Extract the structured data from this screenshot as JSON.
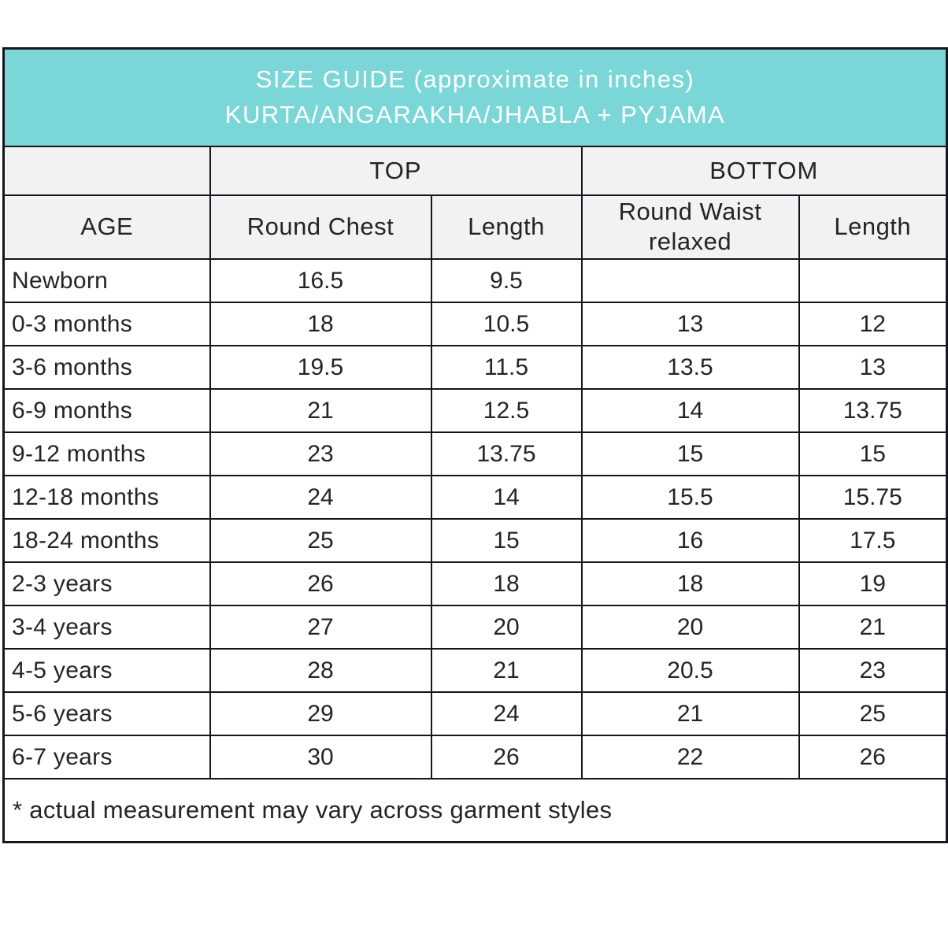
{
  "title": {
    "line1": "SIZE GUIDE (approximate in inches)",
    "line2": "KURTA/ANGARAKHA/JHABLA + PYJAMA"
  },
  "table": {
    "group_headers": {
      "top": "TOP",
      "bottom": "BOTTOM"
    },
    "column_headers": {
      "age": "AGE",
      "round_chest": "Round Chest",
      "top_length": "Length",
      "round_waist": "Round Waist relaxed",
      "bottom_length": "Length"
    },
    "rows": [
      {
        "age": "Newborn",
        "round_chest": "16.5",
        "top_length": "9.5",
        "round_waist": "",
        "bottom_length": ""
      },
      {
        "age": "0-3 months",
        "round_chest": "18",
        "top_length": "10.5",
        "round_waist": "13",
        "bottom_length": "12"
      },
      {
        "age": "3-6 months",
        "round_chest": "19.5",
        "top_length": "11.5",
        "round_waist": "13.5",
        "bottom_length": "13"
      },
      {
        "age": "6-9 months",
        "round_chest": "21",
        "top_length": "12.5",
        "round_waist": "14",
        "bottom_length": "13.75"
      },
      {
        "age": "9-12 months",
        "round_chest": "23",
        "top_length": "13.75",
        "round_waist": "15",
        "bottom_length": "15"
      },
      {
        "age": "12-18 months",
        "round_chest": "24",
        "top_length": "14",
        "round_waist": "15.5",
        "bottom_length": "15.75"
      },
      {
        "age": "18-24 months",
        "round_chest": "25",
        "top_length": "15",
        "round_waist": "16",
        "bottom_length": "17.5"
      },
      {
        "age": "2-3 years",
        "round_chest": "26",
        "top_length": "18",
        "round_waist": "18",
        "bottom_length": "19"
      },
      {
        "age": "3-4 years",
        "round_chest": "27",
        "top_length": "20",
        "round_waist": "20",
        "bottom_length": "21"
      },
      {
        "age": "4-5 years",
        "round_chest": "28",
        "top_length": "21",
        "round_waist": "20.5",
        "bottom_length": "23"
      },
      {
        "age": "5-6 years",
        "round_chest": "29",
        "top_length": "24",
        "round_waist": "21",
        "bottom_length": "25"
      },
      {
        "age": "6-7 years",
        "round_chest": "30",
        "top_length": "26",
        "round_waist": "22",
        "bottom_length": "26"
      }
    ],
    "footnote": "* actual measurement may vary across garment styles"
  },
  "colors": {
    "title_band": "#7bd7d7",
    "header_gray": "#f2f2f2",
    "border": "#15151f",
    "title_text": "#ffffff",
    "body_text": "#242424"
  }
}
